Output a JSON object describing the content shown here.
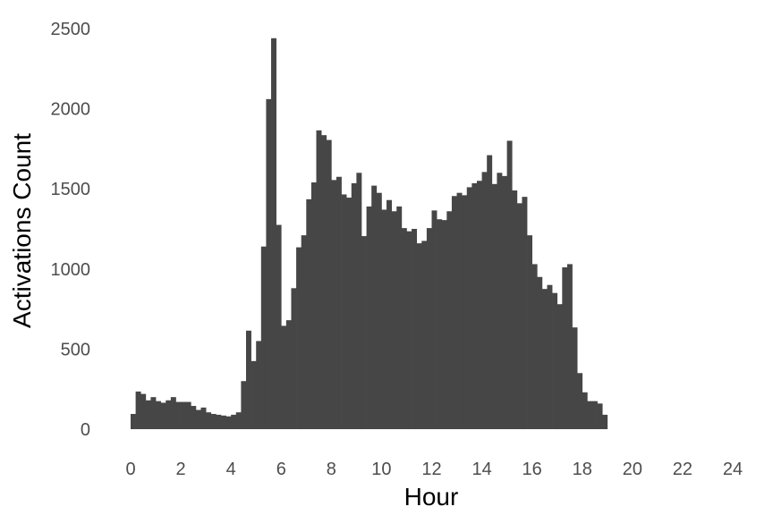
{
  "chart_data": {
    "type": "bar",
    "xlabel": "Hour",
    "ylabel": "Activations Count",
    "xlim": [
      0,
      24
    ],
    "ylim": [
      0,
      2500
    ],
    "xticks": [
      0,
      2,
      4,
      6,
      8,
      10,
      12,
      14,
      16,
      18,
      20,
      22,
      24
    ],
    "yticks": [
      0,
      500,
      1000,
      1500,
      2000,
      2500
    ],
    "bin_width_hours": 0.2,
    "grid": false,
    "legend": "none",
    "bar_color": "#464646",
    "values": [
      95,
      235,
      220,
      180,
      200,
      175,
      165,
      180,
      200,
      170,
      170,
      170,
      145,
      120,
      135,
      105,
      95,
      90,
      85,
      80,
      90,
      105,
      300,
      615,
      425,
      550,
      1140,
      2060,
      2440,
      1275,
      645,
      680,
      880,
      1135,
      1210,
      1435,
      1540,
      1865,
      1835,
      1805,
      1555,
      1575,
      1465,
      1445,
      1535,
      1600,
      1205,
      1390,
      1520,
      1475,
      1370,
      1430,
      1360,
      1390,
      1255,
      1235,
      1250,
      1160,
      1175,
      1255,
      1365,
      1310,
      1305,
      1360,
      1455,
      1475,
      1460,
      1510,
      1535,
      1550,
      1605,
      1710,
      1530,
      1600,
      1580,
      1800,
      1490,
      1410,
      1450,
      1210,
      1030,
      950,
      875,
      900,
      850,
      780,
      1010,
      1030,
      635,
      350,
      230,
      175,
      175,
      160,
      90
    ]
  }
}
